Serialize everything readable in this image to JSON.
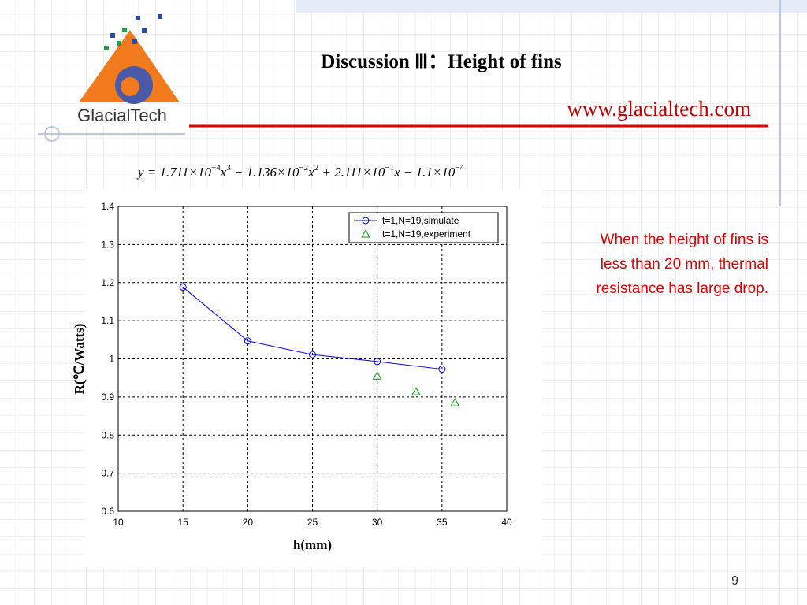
{
  "slide": {
    "title": "Discussion Ⅲ：Height of fins",
    "url": "www.glacialtech.com",
    "logo_text": "GlacialTech",
    "equation": [
      {
        "text": "y = 1.711×10",
        "sup": "−4"
      },
      {
        "text": "x",
        "sup": "3"
      },
      {
        "text": " − 1.136×10",
        "sup": "−2"
      },
      {
        "text": "x",
        "sup": "2"
      },
      {
        "text": " + 2.111×10",
        "sup": "−1"
      },
      {
        "text": "x − 1.1×10",
        "sup": "−4"
      }
    ],
    "note": [
      "When the height of fins is",
      "less than 20 mm, thermal",
      "resistance has large drop."
    ],
    "page_number": "9"
  },
  "chart_data": {
    "type": "line",
    "x_label": "h(mm)",
    "y_label": "R(℃/Watts)",
    "xlim": [
      10,
      40
    ],
    "xticks": [
      10,
      15,
      20,
      25,
      30,
      35,
      40
    ],
    "ylim": [
      0.6,
      1.4
    ],
    "yticks": [
      0.6,
      0.7,
      0.8,
      0.9,
      1,
      1.1,
      1.2,
      1.3,
      1.4
    ],
    "grid": true,
    "legend": "upper right",
    "series": [
      {
        "name": "t=1,N=19,simulate",
        "color": "#0000ff",
        "marker": "circle",
        "line": true,
        "x": [
          15,
          20,
          25,
          30,
          35
        ],
        "values": [
          1.188,
          1.047,
          1.011,
          0.993,
          0.973
        ]
      },
      {
        "name": "t=1,N=19,experiment",
        "color": "#00a000",
        "marker": "triangle",
        "line": false,
        "x": [
          30,
          33,
          36
        ],
        "values": [
          0.955,
          0.914,
          0.885
        ]
      }
    ]
  }
}
